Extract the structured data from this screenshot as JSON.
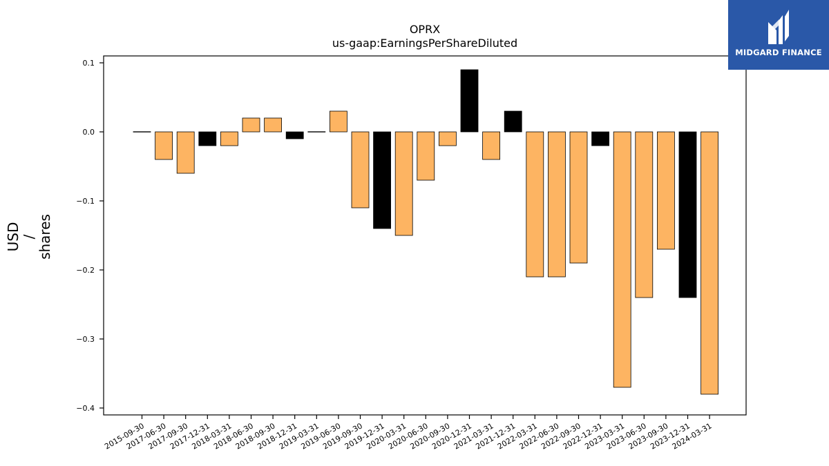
{
  "logo": {
    "text": "MIDGARD FINANCE",
    "bg": "#2a58a8"
  },
  "chart_data": {
    "type": "bar",
    "title": "OPRX",
    "subtitle": "us-gaap:EarningsPerShareDiluted",
    "ylabel": "USD\n/\nshares",
    "xlabel": "",
    "ylim": [
      -0.41,
      0.11
    ],
    "yticks": [
      0.1,
      0.0,
      -0.1,
      -0.2,
      -0.3,
      -0.4
    ],
    "ytick_labels": [
      "0.1",
      "0.0",
      "−0.1",
      "−0.2",
      "−0.3",
      "−0.4"
    ],
    "grid": false,
    "categories": [
      "2015-09-30",
      "2017-06-30",
      "2017-09-30",
      "2017-12-31",
      "2018-03-31",
      "2018-06-30",
      "2018-09-30",
      "2018-12-31",
      "2019-03-31",
      "2019-06-30",
      "2019-09-30",
      "2019-12-31",
      "2020-03-31",
      "2020-06-30",
      "2020-09-30",
      "2020-12-31",
      "2021-03-31",
      "2021-12-31",
      "2022-03-31",
      "2022-06-30",
      "2022-09-30",
      "2022-12-31",
      "2023-03-31",
      "2023-06-30",
      "2023-09-30",
      "2023-12-31",
      "2024-03-31"
    ],
    "values": [
      0.0,
      -0.04,
      -0.06,
      -0.02,
      -0.02,
      0.02,
      0.02,
      -0.01,
      0.0,
      0.03,
      -0.11,
      -0.14,
      -0.15,
      -0.07,
      -0.02,
      0.09,
      -0.04,
      0.03,
      -0.21,
      -0.21,
      -0.19,
      -0.02,
      -0.37,
      -0.24,
      -0.17,
      -0.24,
      -0.38
    ],
    "bar_colors": [
      "#000000",
      "#fdb462",
      "#fdb462",
      "#000000",
      "#fdb462",
      "#fdb462",
      "#fdb462",
      "#000000",
      "#000000",
      "#fdb462",
      "#fdb462",
      "#000000",
      "#fdb462",
      "#fdb462",
      "#fdb462",
      "#000000",
      "#fdb462",
      "#000000",
      "#fdb462",
      "#fdb462",
      "#fdb462",
      "#000000",
      "#fdb462",
      "#fdb462",
      "#fdb462",
      "#000000",
      "#fdb462"
    ]
  }
}
